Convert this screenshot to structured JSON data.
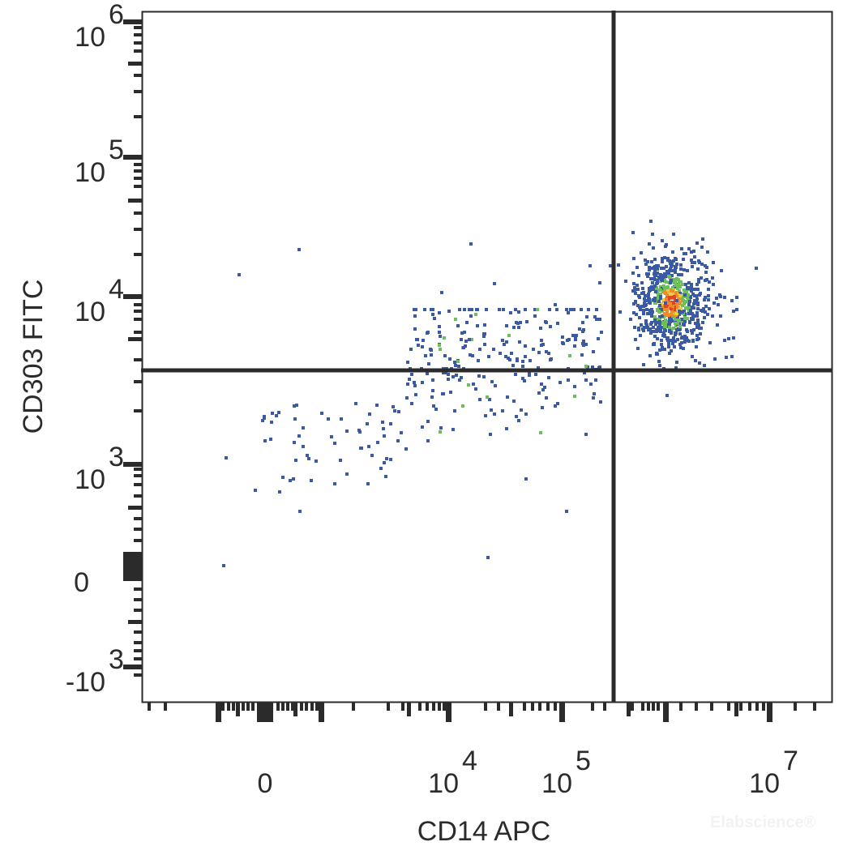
{
  "chart_data": {
    "type": "scatter",
    "subtype": "flow-cytometry-density-dot-plot",
    "title": "",
    "xlabel": "CD14 APC",
    "ylabel": "CD303 FITC",
    "x_scale": "biexponential",
    "y_scale": "biexponential",
    "x_ticks": [
      {
        "label_base": "0",
        "label_exp": "",
        "value": 0
      },
      {
        "label_base": "10",
        "label_exp": "4",
        "value": 10000
      },
      {
        "label_base": "10",
        "label_exp": "5",
        "value": 100000
      },
      {
        "label_base": "10",
        "label_exp": "7",
        "value": 10000000
      }
    ],
    "y_ticks": [
      {
        "label_base": "10",
        "label_exp": "6",
        "value": 1000000
      },
      {
        "label_base": "10",
        "label_exp": "5",
        "value": 100000
      },
      {
        "label_base": "10",
        "label_exp": "4",
        "value": 10000
      },
      {
        "label_base": "10",
        "label_exp": "3",
        "value": 1000
      },
      {
        "label_base": "0",
        "label_exp": "",
        "value": 0
      },
      {
        "label_base": "-10",
        "label_exp": "3",
        "value": -1000
      }
    ],
    "xlim_approx": [
      -1000,
      20000000
    ],
    "ylim_approx": [
      -2500,
      1500000
    ],
    "grid": false,
    "legend": null,
    "gates": {
      "vertical_x_approx": 280000,
      "horizontal_y_approx": 3500,
      "type": "quadrant"
    },
    "populations": [
      {
        "name": "CD14+ CD303+ (upper-right cluster)",
        "center_x_approx": 1000000,
        "center_y_approx": 10000,
        "density": "high",
        "colors": [
          "#3b5aa6",
          "#6cbf5a",
          "#e8d23a",
          "#f08a2a",
          "#e0442a"
        ]
      },
      {
        "name": "scattered lower-left/lower-middle events",
        "x_range_approx": [
          0,
          250000
        ],
        "y_range_approx": [
          500,
          4000
        ],
        "density": "low",
        "colors": [
          "#3b5aa6",
          "#6cbf5a"
        ]
      }
    ],
    "density_colors": {
      "low": "#3b5aa6",
      "mid_low": "#6cbf5a",
      "mid": "#e8d23a",
      "mid_high": "#f08a2a",
      "high": "#e0442a"
    },
    "axis_color": "#2b2b2b"
  },
  "watermark": "Elabscience®"
}
